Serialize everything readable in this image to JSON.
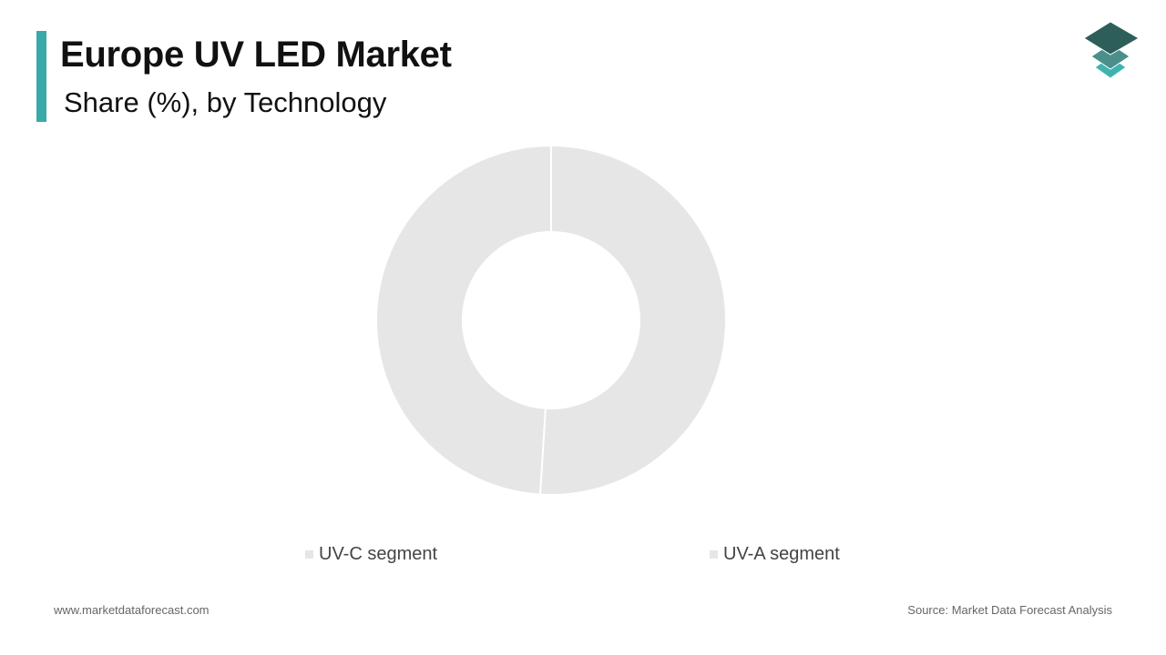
{
  "header": {
    "title": "Europe UV LED Market",
    "subtitle": "Share (%), by Technology"
  },
  "logo": {
    "icon": "stacked-layers-logo-icon",
    "colors": [
      "#2e5e5a",
      "#4a8f8a",
      "#3fb3b0"
    ]
  },
  "colors": {
    "accent": "#3aa9a9",
    "slice": "#e6e6e6",
    "separator": "#ffffff"
  },
  "chart_data": {
    "type": "pie",
    "variant": "donut",
    "title": "Europe UV LED Market",
    "subtitle": "Share (%), by Technology",
    "categories": [
      "UV-C segment",
      "UV-A segment"
    ],
    "values": [
      51,
      49
    ],
    "colors": [
      "#e6e6e6",
      "#e6e6e6"
    ],
    "start_angle_deg": 0,
    "legend_position": "bottom"
  },
  "legend": {
    "items": [
      {
        "label": "UV-C segment"
      },
      {
        "label": "UV-A segment"
      }
    ]
  },
  "footer": {
    "website": "www.marketdataforecast.com",
    "source": "Source: Market Data Forecast Analysis"
  }
}
